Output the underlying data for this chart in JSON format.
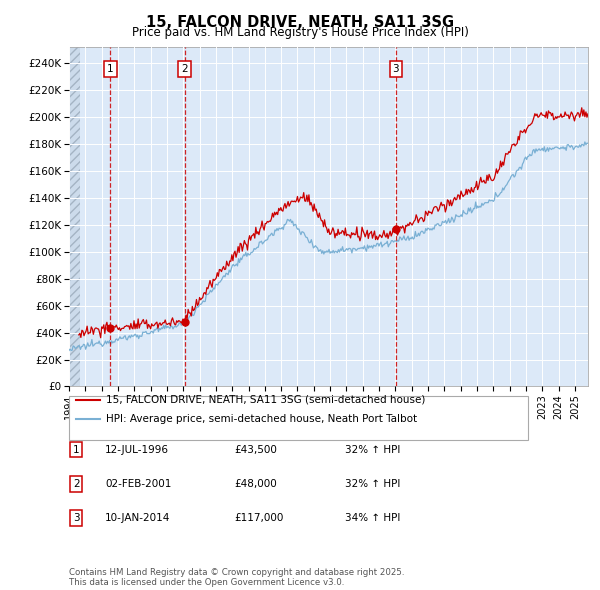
{
  "title": "15, FALCON DRIVE, NEATH, SA11 3SG",
  "subtitle": "Price paid vs. HM Land Registry's House Price Index (HPI)",
  "legend_entry1": "15, FALCON DRIVE, NEATH, SA11 3SG (semi-detached house)",
  "legend_entry2": "HPI: Average price, semi-detached house, Neath Port Talbot",
  "footnote": "Contains HM Land Registry data © Crown copyright and database right 2025.\nThis data is licensed under the Open Government Licence v3.0.",
  "transactions": [
    {
      "num": 1,
      "date": "12-JUL-1996",
      "price": "£43,500",
      "hpi": "32% ↑ HPI",
      "year": 1996.53
    },
    {
      "num": 2,
      "date": "02-FEB-2001",
      "price": "£48,000",
      "hpi": "32% ↑ HPI",
      "year": 2001.09
    },
    {
      "num": 3,
      "date": "10-JAN-2014",
      "price": "£117,000",
      "hpi": "34% ↑ HPI",
      "year": 2014.03
    }
  ],
  "transaction_prices": [
    43500,
    48000,
    117000
  ],
  "xmin": 1994.0,
  "xmax": 2025.8,
  "ymin": 0,
  "ymax": 252000,
  "yticks": [
    0,
    20000,
    40000,
    60000,
    80000,
    100000,
    120000,
    140000,
    160000,
    180000,
    200000,
    220000,
    240000
  ],
  "ytick_labels": [
    "£0",
    "£20K",
    "£40K",
    "£60K",
    "£80K",
    "£100K",
    "£120K",
    "£140K",
    "£160K",
    "£180K",
    "£200K",
    "£220K",
    "£240K"
  ],
  "hatch_end_year": 1994.7,
  "plot_bg": "#dce9f8",
  "red_line_color": "#cc0000",
  "blue_line_color": "#7ab0d4",
  "grid_color": "#ffffff"
}
